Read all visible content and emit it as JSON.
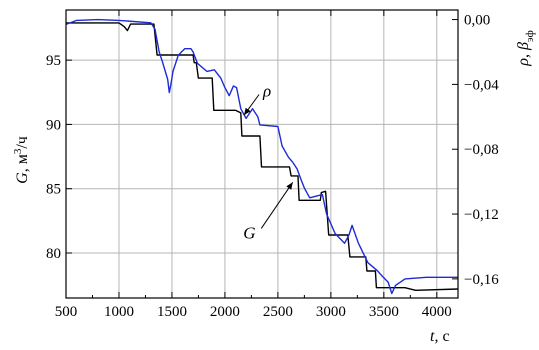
{
  "chart_data": {
    "type": "line",
    "x_axis": {
      "label_var": "t",
      "label_unit": ", с",
      "range": [
        500,
        4200
      ],
      "ticks": [
        500,
        1000,
        1500,
        2000,
        2500,
        3000,
        3500,
        4000
      ],
      "tick_labels": [
        "500",
        "1000",
        "1500",
        "2000",
        "2500",
        "3000",
        "3500",
        "4000"
      ]
    },
    "y_left": {
      "label_var": "G",
      "label_unit": ", м",
      "label_sup": "3",
      "label_unit_tail": "/ч",
      "range": [
        76.5,
        98.9
      ],
      "ticks": [
        80,
        85,
        90,
        95
      ],
      "tick_labels": [
        "80",
        "85",
        "90",
        "95"
      ]
    },
    "y_right": {
      "label_var": "ρ, β",
      "label_sub": "эф",
      "range": [
        -0.1718,
        0.0059
      ],
      "ticks": [
        0.0,
        -0.04,
        -0.08,
        -0.12,
        -0.16
      ],
      "tick_labels": [
        "0,00",
        "−0,04",
        "−0,08",
        "−0,12",
        "−0,16"
      ]
    },
    "grid": true,
    "series": [
      {
        "name": "G",
        "axis": "left",
        "color": "#000000",
        "points": [
          [
            500,
            97.9
          ],
          [
            1000,
            97.9
          ],
          [
            1050,
            97.6
          ],
          [
            1080,
            97.3
          ],
          [
            1110,
            97.8
          ],
          [
            1330,
            97.8
          ],
          [
            1360,
            95.4
          ],
          [
            1700,
            95.4
          ],
          [
            1710,
            94.8
          ],
          [
            1730,
            94.8
          ],
          [
            1750,
            93.6
          ],
          [
            1880,
            93.6
          ],
          [
            1895,
            91.1
          ],
          [
            2100,
            91.1
          ],
          [
            2150,
            90.9
          ],
          [
            2160,
            89.1
          ],
          [
            2330,
            89.1
          ],
          [
            2345,
            86.7
          ],
          [
            2610,
            86.7
          ],
          [
            2625,
            86.0
          ],
          [
            2690,
            86.0
          ],
          [
            2700,
            84.1
          ],
          [
            2900,
            84.1
          ],
          [
            2910,
            84.7
          ],
          [
            2950,
            84.8
          ],
          [
            2980,
            81.4
          ],
          [
            3160,
            81.4
          ],
          [
            3180,
            79.7
          ],
          [
            3330,
            79.7
          ],
          [
            3340,
            78.6
          ],
          [
            3420,
            78.6
          ],
          [
            3430,
            77.3
          ],
          [
            3700,
            77.3
          ],
          [
            3800,
            77.1
          ],
          [
            4200,
            77.2
          ]
        ]
      },
      {
        "name": "ρ",
        "axis": "right",
        "color": "#1c2bd6",
        "points": [
          [
            500,
            -0.003
          ],
          [
            600,
            -0.0005
          ],
          [
            800,
            0.0
          ],
          [
            1000,
            -0.0005
          ],
          [
            1300,
            -0.002
          ],
          [
            1340,
            -0.006
          ],
          [
            1360,
            -0.013
          ],
          [
            1380,
            -0.02
          ],
          [
            1410,
            -0.026
          ],
          [
            1460,
            -0.037
          ],
          [
            1475,
            -0.045
          ],
          [
            1490,
            -0.04
          ],
          [
            1510,
            -0.032
          ],
          [
            1560,
            -0.022
          ],
          [
            1620,
            -0.018
          ],
          [
            1680,
            -0.018
          ],
          [
            1700,
            -0.02
          ],
          [
            1740,
            -0.027
          ],
          [
            1830,
            -0.032
          ],
          [
            1900,
            -0.031
          ],
          [
            1960,
            -0.036
          ],
          [
            2000,
            -0.042
          ],
          [
            2040,
            -0.047
          ],
          [
            2080,
            -0.041
          ],
          [
            2110,
            -0.042
          ],
          [
            2150,
            -0.055
          ],
          [
            2200,
            -0.061
          ],
          [
            2260,
            -0.055
          ],
          [
            2310,
            -0.06
          ],
          [
            2330,
            -0.065
          ],
          [
            2500,
            -0.066
          ],
          [
            2540,
            -0.078
          ],
          [
            2600,
            -0.085
          ],
          [
            2640,
            -0.088
          ],
          [
            2680,
            -0.092
          ],
          [
            2720,
            -0.099
          ],
          [
            2750,
            -0.104
          ],
          [
            2800,
            -0.11
          ],
          [
            2860,
            -0.109
          ],
          [
            2920,
            -0.108
          ],
          [
            2960,
            -0.12
          ],
          [
            3040,
            -0.132
          ],
          [
            3130,
            -0.138
          ],
          [
            3170,
            -0.133
          ],
          [
            3200,
            -0.127
          ],
          [
            3260,
            -0.138
          ],
          [
            3350,
            -0.15
          ],
          [
            3440,
            -0.155
          ],
          [
            3480,
            -0.158
          ],
          [
            3540,
            -0.162
          ],
          [
            3575,
            -0.169
          ],
          [
            3610,
            -0.164
          ],
          [
            3700,
            -0.16
          ],
          [
            3900,
            -0.159
          ],
          [
            4200,
            -0.159
          ]
        ]
      }
    ],
    "annotations": [
      {
        "text": "ρ",
        "target": [
          2180,
          -0.059
        ],
        "label_at": [
          2360,
          -0.045
        ]
      },
      {
        "text": "G",
        "target": [
          2640,
          85.5
        ],
        "label_at": [
          2230,
          81.6
        ]
      }
    ]
  }
}
